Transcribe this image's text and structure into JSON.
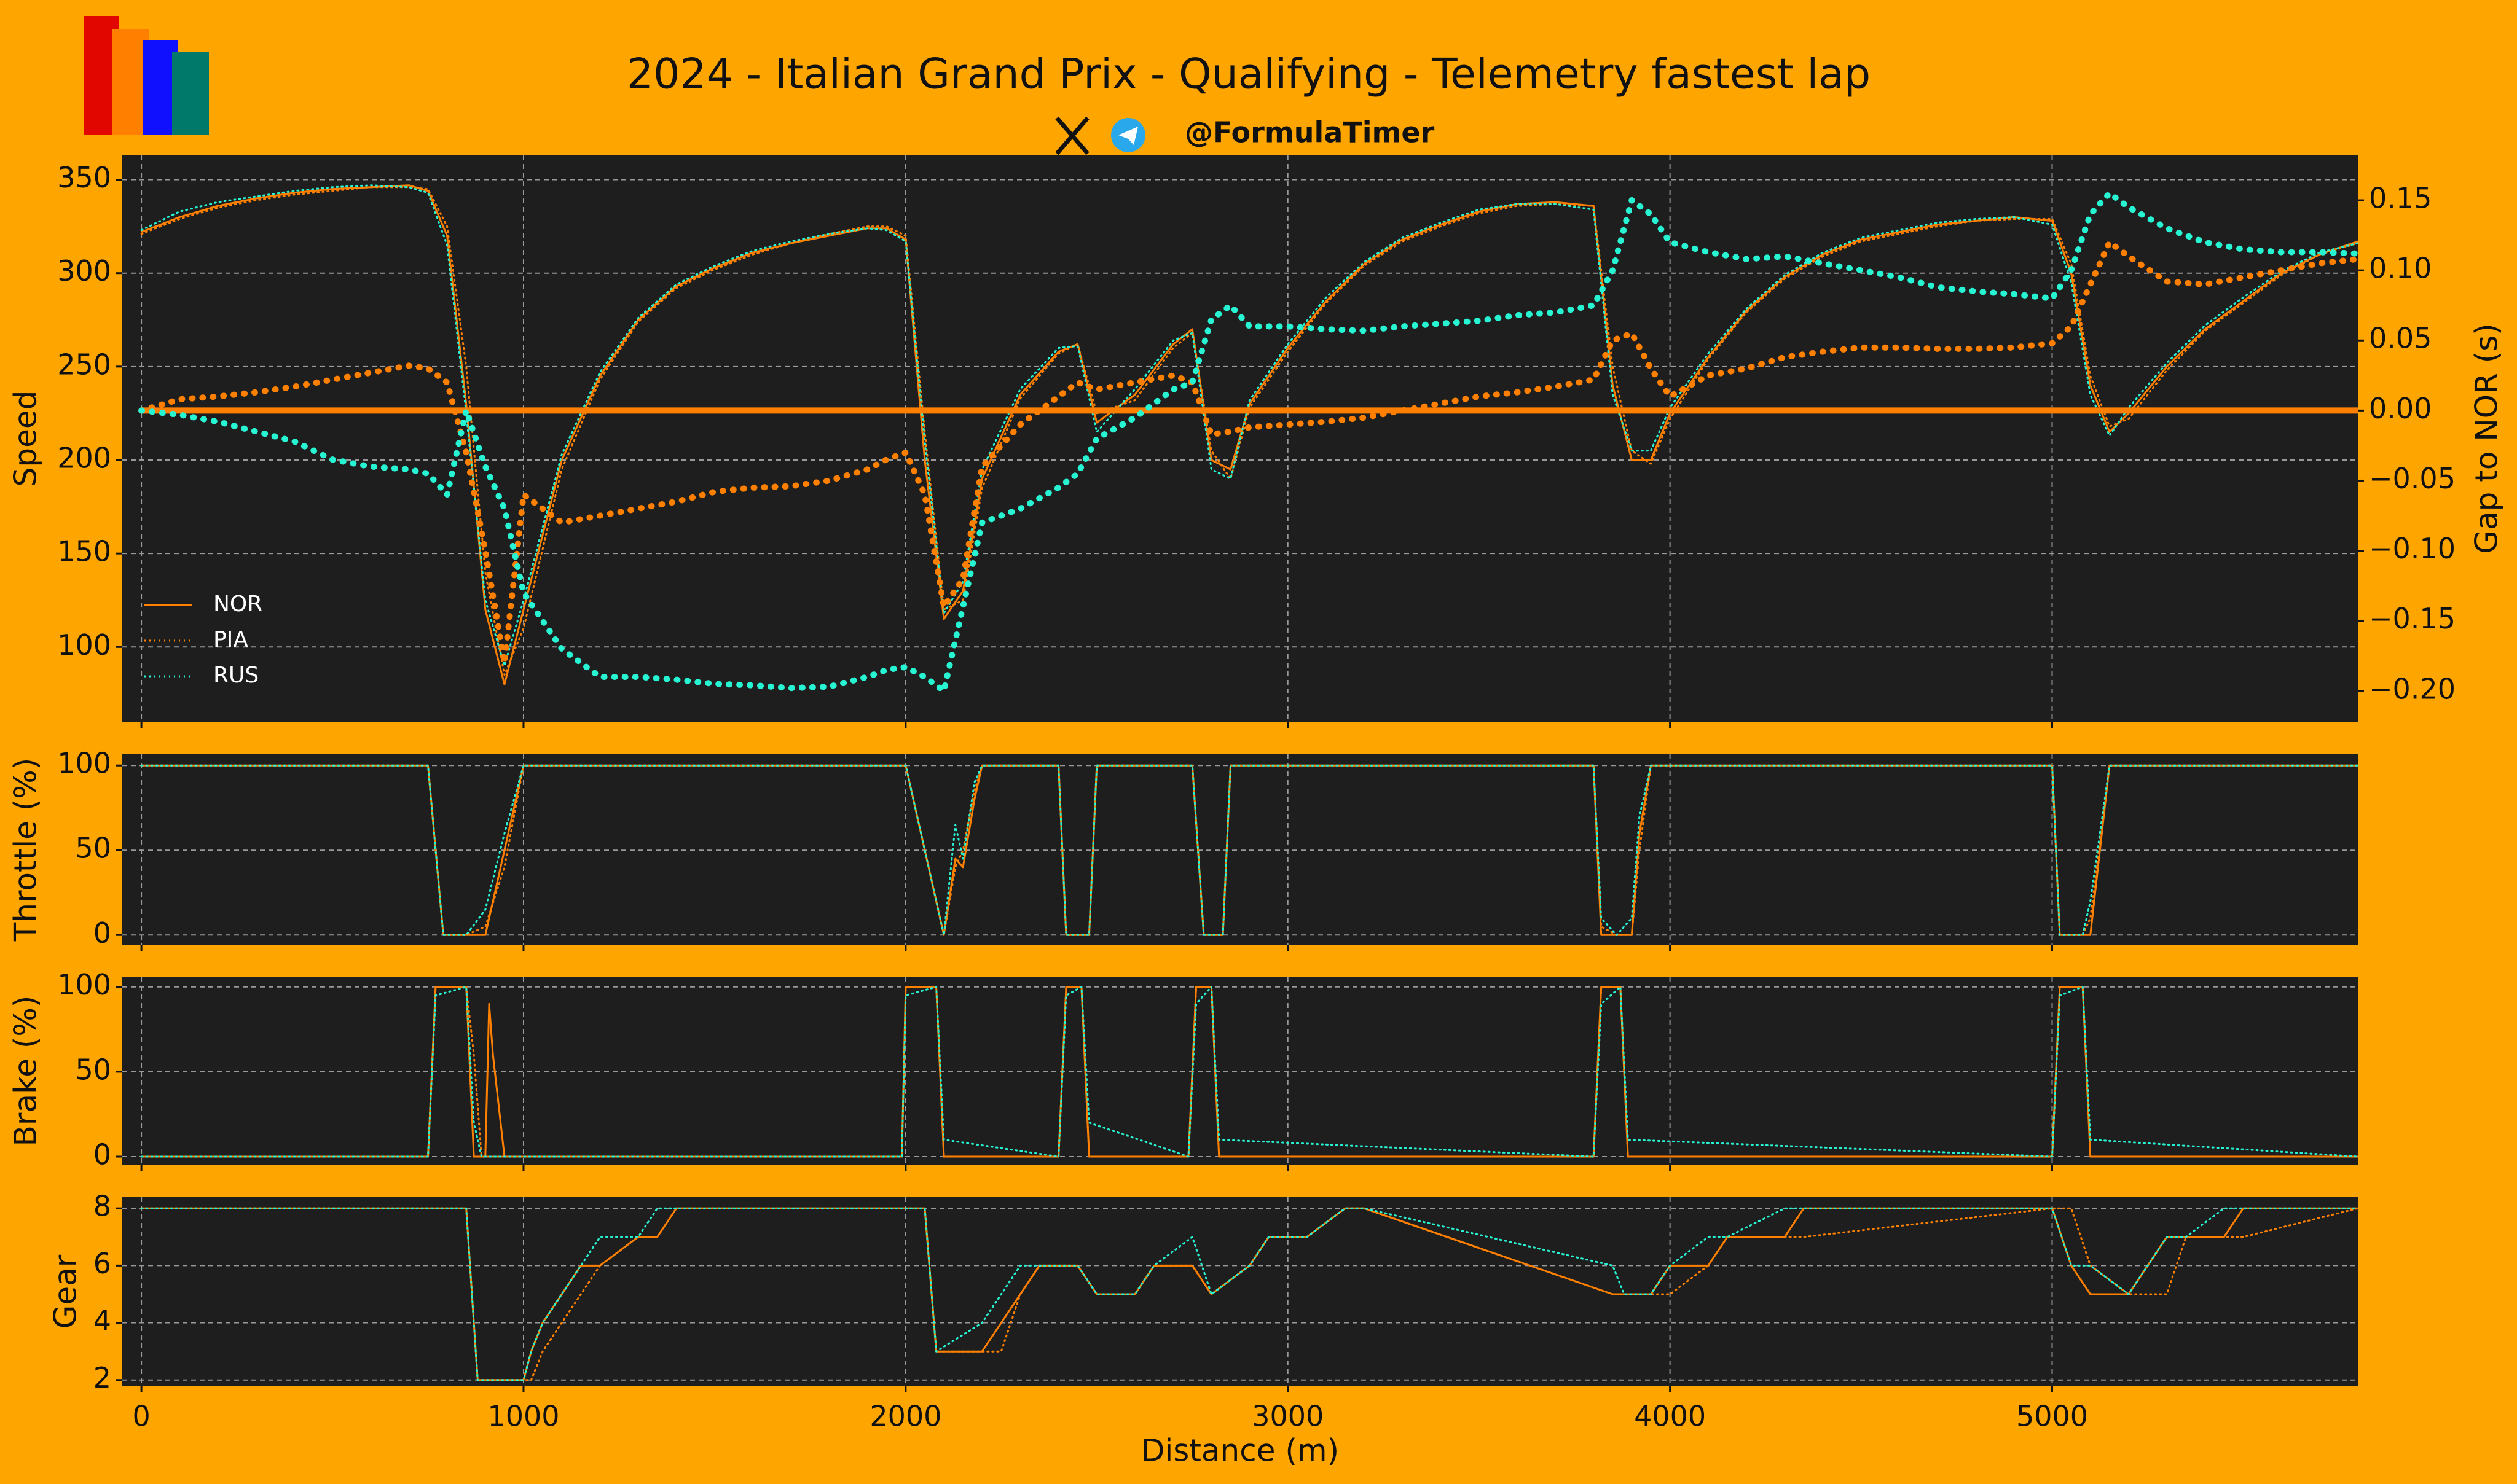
{
  "title": "2024 - Italian Grand Prix - Qualifying - Telemetry fastest lap",
  "handle": "@FormulaTimer",
  "chart_data": [
    {
      "type": "line",
      "ylabel": "Speed",
      "y2label": "Gap to NOR (s)",
      "legend": "lower left",
      "grid": true,
      "xlim": [
        -50,
        5800
      ],
      "xticks": [
        0,
        1000,
        2000,
        3000,
        4000,
        5000
      ],
      "ylim": [
        60,
        363
      ],
      "yticks": [
        100,
        150,
        200,
        250,
        300,
        350
      ],
      "y2lim": [
        -0.222,
        0.182
      ],
      "y2ticks": [
        {
          "value": -0.2,
          "label": "−0.20"
        },
        {
          "value": -0.15,
          "label": "−0.15"
        },
        {
          "value": -0.1,
          "label": "−0.10"
        },
        {
          "value": -0.05,
          "label": "−0.05"
        },
        {
          "value": 0,
          "label": "0.00"
        },
        {
          "value": 0.05,
          "label": "0.05"
        },
        {
          "value": 0.1,
          "label": "0.10"
        },
        {
          "value": 0.15,
          "label": "0.15"
        }
      ],
      "x": [
        0,
        100,
        200,
        300,
        400,
        500,
        600,
        700,
        750,
        800,
        850,
        900,
        950,
        1000,
        1100,
        1200,
        1300,
        1400,
        1500,
        1600,
        1700,
        1800,
        1900,
        1950,
        2000,
        2050,
        2100,
        2150,
        2200,
        2300,
        2400,
        2450,
        2500,
        2600,
        2700,
        2750,
        2800,
        2850,
        2900,
        3000,
        3100,
        3200,
        3300,
        3400,
        3500,
        3600,
        3700,
        3800,
        3850,
        3900,
        3950,
        4000,
        4100,
        4200,
        4300,
        4400,
        4500,
        4600,
        4700,
        4800,
        4900,
        5000,
        5050,
        5100,
        5150,
        5200,
        5300,
        5400,
        5500,
        5600,
        5700,
        5800
      ],
      "series": [
        {
          "name": "NOR",
          "color": "#ff8000",
          "style": "solid",
          "values": [
            322,
            330,
            336,
            340,
            343,
            345,
            346,
            347,
            344,
            320,
            230,
            120,
            80,
            120,
            200,
            245,
            275,
            293,
            303,
            311,
            316,
            320,
            324,
            324,
            318,
            200,
            115,
            130,
            190,
            235,
            258,
            262,
            220,
            235,
            262,
            270,
            200,
            195,
            230,
            260,
            285,
            305,
            318,
            326,
            333,
            337,
            338,
            336,
            240,
            200,
            200,
            225,
            255,
            280,
            298,
            310,
            318,
            322,
            326,
            328,
            330,
            328,
            300,
            240,
            215,
            225,
            250,
            270,
            285,
            300,
            310,
            317
          ]
        },
        {
          "name": "PIA",
          "color": "#ff8000",
          "style": "dotted",
          "values": [
            321,
            329,
            335,
            339,
            342,
            344,
            346,
            346,
            345,
            325,
            250,
            140,
            85,
            110,
            195,
            243,
            274,
            292,
            302,
            310,
            316,
            321,
            325,
            325,
            320,
            215,
            120,
            125,
            185,
            233,
            257,
            262,
            225,
            232,
            260,
            268,
            205,
            190,
            228,
            258,
            284,
            304,
            317,
            325,
            332,
            336,
            337,
            336,
            250,
            205,
            198,
            222,
            254,
            279,
            297,
            309,
            317,
            321,
            325,
            328,
            329,
            329,
            305,
            245,
            218,
            222,
            248,
            269,
            284,
            299,
            310,
            316
          ]
        },
        {
          "name": "RUS",
          "color": "#27f4d2",
          "style": "dotted",
          "values": [
            323,
            333,
            338,
            341,
            344,
            346,
            347,
            346,
            343,
            315,
            225,
            125,
            90,
            125,
            203,
            247,
            276,
            294,
            304,
            312,
            317,
            321,
            324,
            323,
            317,
            210,
            118,
            135,
            195,
            238,
            260,
            261,
            215,
            238,
            264,
            268,
            195,
            190,
            232,
            262,
            287,
            306,
            319,
            327,
            334,
            337,
            337,
            334,
            235,
            205,
            205,
            228,
            257,
            281,
            299,
            311,
            319,
            323,
            327,
            329,
            330,
            326,
            295,
            235,
            213,
            228,
            252,
            272,
            287,
            301,
            311,
            316
          ]
        },
        {
          "name": "NOR",
          "color": "#ff8000",
          "style": "solid",
          "axis": "y2",
          "values": [
            0,
            0,
            0,
            0,
            0,
            0,
            0,
            0,
            0,
            0,
            0,
            0,
            0,
            0,
            0,
            0,
            0,
            0,
            0,
            0,
            0,
            0,
            0,
            0,
            0,
            0,
            0,
            0,
            0,
            0,
            0,
            0,
            0,
            0,
            0,
            0,
            0,
            0,
            0,
            0,
            0,
            0,
            0,
            0,
            0,
            0,
            0,
            0,
            0,
            0,
            0,
            0,
            0,
            0,
            0,
            0,
            0,
            0,
            0,
            0,
            0,
            0,
            0,
            0,
            0,
            0,
            0,
            0,
            0,
            0,
            0,
            0
          ]
        },
        {
          "name": "PIA",
          "color": "#ff8000",
          "style": "dotted",
          "axis": "y2",
          "values": [
            0,
            0.008,
            0.01,
            0.013,
            0.017,
            0.022,
            0.027,
            0.032,
            0.03,
            0.02,
            -0.03,
            -0.1,
            -0.18,
            -0.06,
            -0.08,
            -0.075,
            -0.07,
            -0.065,
            -0.058,
            -0.055,
            -0.054,
            -0.05,
            -0.042,
            -0.035,
            -0.03,
            -0.06,
            -0.14,
            -0.12,
            -0.04,
            -0.01,
            0.01,
            0.02,
            0.015,
            0.02,
            0.025,
            0.02,
            -0.017,
            -0.015,
            -0.012,
            -0.01,
            -0.008,
            -0.005,
            0,
            0.005,
            0.01,
            0.013,
            0.017,
            0.022,
            0.05,
            0.055,
            0.03,
            0.01,
            0.025,
            0.03,
            0.038,
            0.042,
            0.045,
            0.045,
            0.044,
            0.044,
            0.045,
            0.048,
            0.06,
            0.09,
            0.12,
            0.11,
            0.092,
            0.09,
            0.095,
            0.1,
            0.105,
            0.108
          ]
        },
        {
          "name": "RUS",
          "color": "#27f4d2",
          "style": "dotted",
          "axis": "y2",
          "values": [
            0,
            -0.003,
            -0.008,
            -0.015,
            -0.022,
            -0.035,
            -0.04,
            -0.042,
            -0.045,
            -0.06,
            0,
            -0.04,
            -0.07,
            -0.13,
            -0.17,
            -0.19,
            -0.19,
            -0.192,
            -0.195,
            -0.196,
            -0.198,
            -0.197,
            -0.19,
            -0.185,
            -0.183,
            -0.19,
            -0.2,
            -0.14,
            -0.08,
            -0.07,
            -0.055,
            -0.045,
            -0.02,
            -0.005,
            0.015,
            0.02,
            0.065,
            0.075,
            0.06,
            0.06,
            0.058,
            0.057,
            0.06,
            0.062,
            0.064,
            0.068,
            0.07,
            0.075,
            0.1,
            0.15,
            0.14,
            0.12,
            0.113,
            0.108,
            0.11,
            0.105,
            0.1,
            0.095,
            0.088,
            0.085,
            0.083,
            0.08,
            0.1,
            0.14,
            0.155,
            0.145,
            0.13,
            0.12,
            0.115,
            0.113,
            0.113,
            0.112
          ]
        }
      ]
    },
    {
      "type": "line",
      "ylabel": "Throttle (%)",
      "grid": true,
      "xlim": [
        -50,
        5800
      ],
      "xticks": [
        0,
        1000,
        2000,
        3000,
        4000,
        5000
      ],
      "ylim": [
        -5.7,
        106.6
      ],
      "yticks": [
        0,
        50,
        100
      ],
      "x": [
        0,
        750,
        790,
        850,
        900,
        950,
        1000,
        1990,
        2000,
        2100,
        2130,
        2150,
        2180,
        2200,
        2400,
        2420,
        2480,
        2500,
        2750,
        2780,
        2830,
        2850,
        3800,
        3820,
        3860,
        3900,
        3920,
        3950,
        4000,
        5000,
        5020,
        5080,
        5100,
        5150,
        5800
      ],
      "series": [
        {
          "name": "NOR",
          "color": "#ff8000",
          "style": "solid",
          "values": [
            100,
            100,
            0,
            0,
            0,
            50,
            100,
            100,
            100,
            0,
            45,
            40,
            80,
            100,
            100,
            0,
            0,
            100,
            100,
            0,
            0,
            100,
            100,
            0,
            0,
            0,
            60,
            100,
            100,
            100,
            0,
            0,
            0,
            100,
            100
          ]
        },
        {
          "name": "PIA",
          "color": "#ff8000",
          "style": "dotted",
          "values": [
            100,
            100,
            0,
            0,
            5,
            40,
            100,
            100,
            100,
            0,
            40,
            50,
            85,
            100,
            100,
            0,
            0,
            100,
            100,
            0,
            0,
            100,
            100,
            5,
            0,
            0,
            50,
            100,
            100,
            100,
            0,
            0,
            10,
            100,
            100
          ]
        },
        {
          "name": "RUS",
          "color": "#27f4d2",
          "style": "dotted",
          "values": [
            100,
            100,
            0,
            0,
            15,
            60,
            100,
            100,
            100,
            0,
            65,
            45,
            90,
            100,
            100,
            0,
            0,
            100,
            100,
            0,
            0,
            100,
            100,
            10,
            0,
            10,
            70,
            100,
            100,
            100,
            0,
            0,
            20,
            100,
            100
          ]
        }
      ]
    },
    {
      "type": "line",
      "ylabel": "Brake (%)",
      "grid": true,
      "xlim": [
        -50,
        5800
      ],
      "xticks": [
        0,
        1000,
        2000,
        3000,
        4000,
        5000
      ],
      "ylim": [
        -4.7,
        105.7
      ],
      "yticks": [
        0,
        50,
        100
      ],
      "x": [
        0,
        750,
        770,
        850,
        870,
        890,
        900,
        910,
        920,
        950,
        1990,
        2000,
        2080,
        2100,
        2400,
        2420,
        2460,
        2480,
        2740,
        2760,
        2800,
        2820,
        3800,
        3820,
        3870,
        3890,
        5000,
        5020,
        5080,
        5100,
        5800
      ],
      "series": [
        {
          "name": "NOR",
          "color": "#ff8000",
          "style": "solid",
          "values": [
            0,
            0,
            100,
            100,
            0,
            0,
            0,
            90,
            60,
            0,
            0,
            100,
            100,
            0,
            0,
            100,
            100,
            0,
            0,
            100,
            100,
            0,
            0,
            100,
            100,
            0,
            0,
            100,
            100,
            0,
            0
          ]
        },
        {
          "name": "PIA",
          "color": "#ff8000",
          "style": "dotted",
          "values": [
            0,
            0,
            100,
            100,
            60,
            0,
            0,
            0,
            0,
            0,
            0,
            100,
            100,
            0,
            0,
            100,
            100,
            0,
            0,
            100,
            100,
            0,
            0,
            100,
            100,
            0,
            0,
            100,
            100,
            0,
            0
          ]
        },
        {
          "name": "RUS",
          "color": "#27f4d2",
          "style": "dotted",
          "values": [
            0,
            0,
            95,
            100,
            20,
            0,
            0,
            0,
            0,
            0,
            0,
            95,
            100,
            10,
            0,
            95,
            100,
            20,
            0,
            90,
            100,
            10,
            0,
            90,
            100,
            10,
            0,
            95,
            100,
            10,
            0
          ]
        }
      ]
    },
    {
      "type": "line",
      "ylabel": "Gear",
      "xlabel": "Distance (m)",
      "grid": true,
      "xlim": [
        -50,
        5800
      ],
      "xticks": [
        0,
        1000,
        2000,
        3000,
        4000,
        5000
      ],
      "ylim": [
        1.78,
        8.39
      ],
      "yticks": [
        2,
        4,
        6,
        8
      ],
      "x": [
        0,
        850,
        880,
        1000,
        1020,
        1050,
        1100,
        1150,
        1200,
        1300,
        1350,
        1400,
        2050,
        2080,
        2200,
        2250,
        2300,
        2350,
        2450,
        2500,
        2600,
        2650,
        2750,
        2800,
        2900,
        2950,
        3050,
        3150,
        3200,
        3850,
        3880,
        3950,
        4000,
        4100,
        4150,
        4300,
        4350,
        5000,
        5050,
        5100,
        5200,
        5250,
        5300,
        5350,
        5450,
        5500,
        5800
      ],
      "series": [
        {
          "name": "NOR",
          "color": "#ff8000",
          "style": "solid",
          "values": [
            8,
            8,
            2,
            2,
            3,
            4,
            5,
            6,
            6,
            7,
            7,
            8,
            8,
            3,
            3,
            4,
            5,
            6,
            6,
            5,
            5,
            6,
            6,
            5,
            6,
            7,
            7,
            8,
            8,
            5,
            5,
            5,
            6,
            6,
            7,
            7,
            8,
            8,
            6,
            5,
            5,
            6,
            7,
            7,
            7,
            8,
            8
          ]
        },
        {
          "name": "PIA",
          "color": "#ff8000",
          "style": "dotted",
          "values": [
            8,
            8,
            2,
            2,
            2,
            3,
            4,
            5,
            6,
            7,
            7,
            8,
            8,
            3,
            3,
            3,
            5,
            6,
            6,
            5,
            5,
            6,
            6,
            5,
            6,
            7,
            7,
            8,
            8,
            5,
            5,
            5,
            5,
            6,
            7,
            7,
            7,
            8,
            8,
            6,
            5,
            5,
            5,
            7,
            7,
            7,
            8
          ]
        },
        {
          "name": "RUS",
          "color": "#27f4d2",
          "style": "dotted",
          "values": [
            8,
            8,
            2,
            2,
            3,
            4,
            5,
            6,
            7,
            7,
            8,
            8,
            8,
            3,
            4,
            5,
            6,
            6,
            6,
            5,
            5,
            6,
            7,
            5,
            6,
            7,
            7,
            8,
            8,
            6,
            5,
            5,
            6,
            7,
            7,
            8,
            8,
            8,
            6,
            6,
            5,
            6,
            7,
            7,
            8,
            8,
            8
          ]
        }
      ]
    }
  ]
}
